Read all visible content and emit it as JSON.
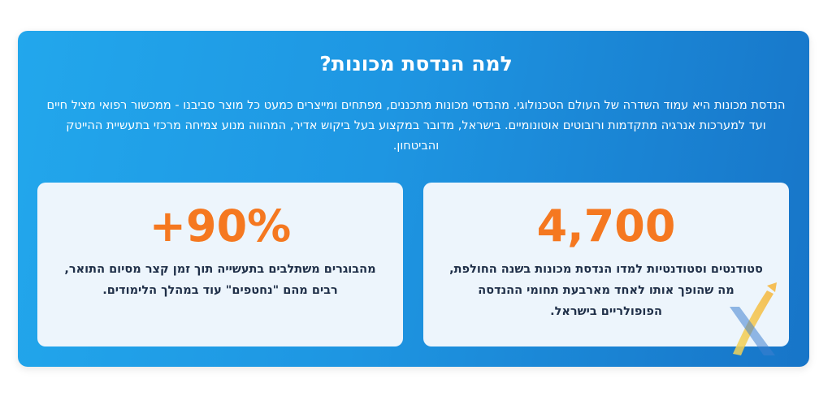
{
  "section": {
    "title": "למה הנדסת מכונות?",
    "intro": "הנדסת מכונות היא עמוד השדרה של העולם הטכנולוגי. מהנדסי מכונות מתכננים, מפתחים ומייצרים כמעט כל מוצר סביבנו - ממכשור רפואי מציל חיים ועד למערכות אנרגיה מתקדמות ורובוטים אוטונומיים. בישראל, מדובר במקצוע בעל ביקוש אדיר, המהווה מנוע צמיחה מרכזי בתעשיית ההייטק והביטחון."
  },
  "stats": [
    {
      "number": "4,700",
      "text": "סטודנטים וסטודנטיות למדו הנדסת מכונות בשנה החולפת, מה שהופך אותו לאחד מארבעת תחומי ההנדסה הפופולריים בישראל."
    },
    {
      "number": "+90%",
      "text": "מהבוגרים משתלבים בתעשייה תוך זמן קצר מסיום התואר, רבים מהם \"נחטפים\" עוד במהלך הלימודים."
    }
  ],
  "colors": {
    "card_gradient_start": "#22a7ec",
    "card_gradient_end": "#1775c8",
    "stat_number": "#f57820",
    "stat_text": "#1f2f48",
    "stat_box_bg": "#edf5fc"
  },
  "icons": {
    "watermark": "x-logo-icon"
  }
}
